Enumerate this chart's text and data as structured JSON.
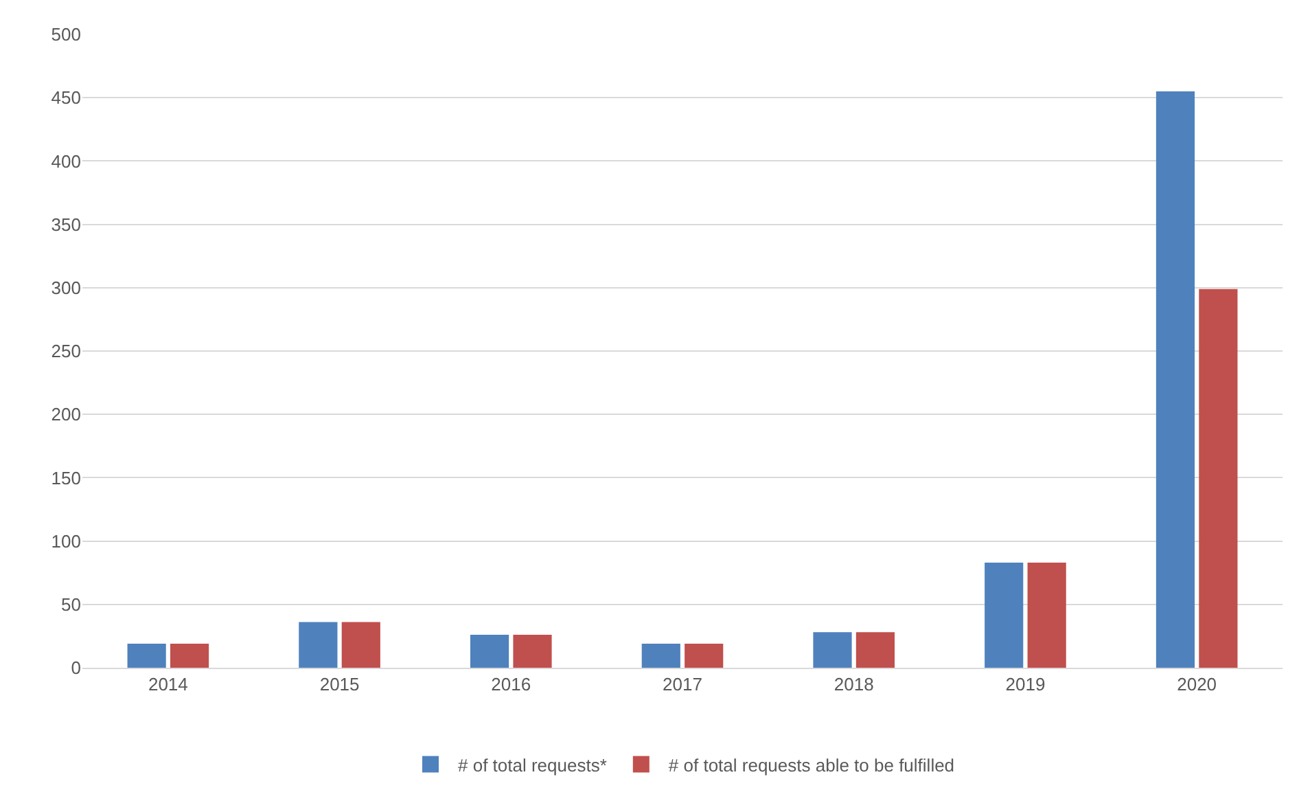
{
  "chart_data": {
    "type": "bar",
    "categories": [
      "2014",
      "2015",
      "2016",
      "2017",
      "2018",
      "2019",
      "2020"
    ],
    "series": [
      {
        "name": "# of total requests*",
        "color": "#4f81bd",
        "values": [
          19,
          36,
          26,
          19,
          28,
          83,
          455
        ]
      },
      {
        "name": "# of total requests able to be fulfilled",
        "color": "#c0504d",
        "values": [
          19,
          36,
          26,
          19,
          28,
          83,
          299
        ]
      }
    ],
    "ylim": [
      0,
      500
    ],
    "yticks": [
      0,
      50,
      100,
      150,
      200,
      250,
      300,
      350,
      400,
      450,
      500
    ],
    "grid": "y",
    "legend": "bottom"
  }
}
